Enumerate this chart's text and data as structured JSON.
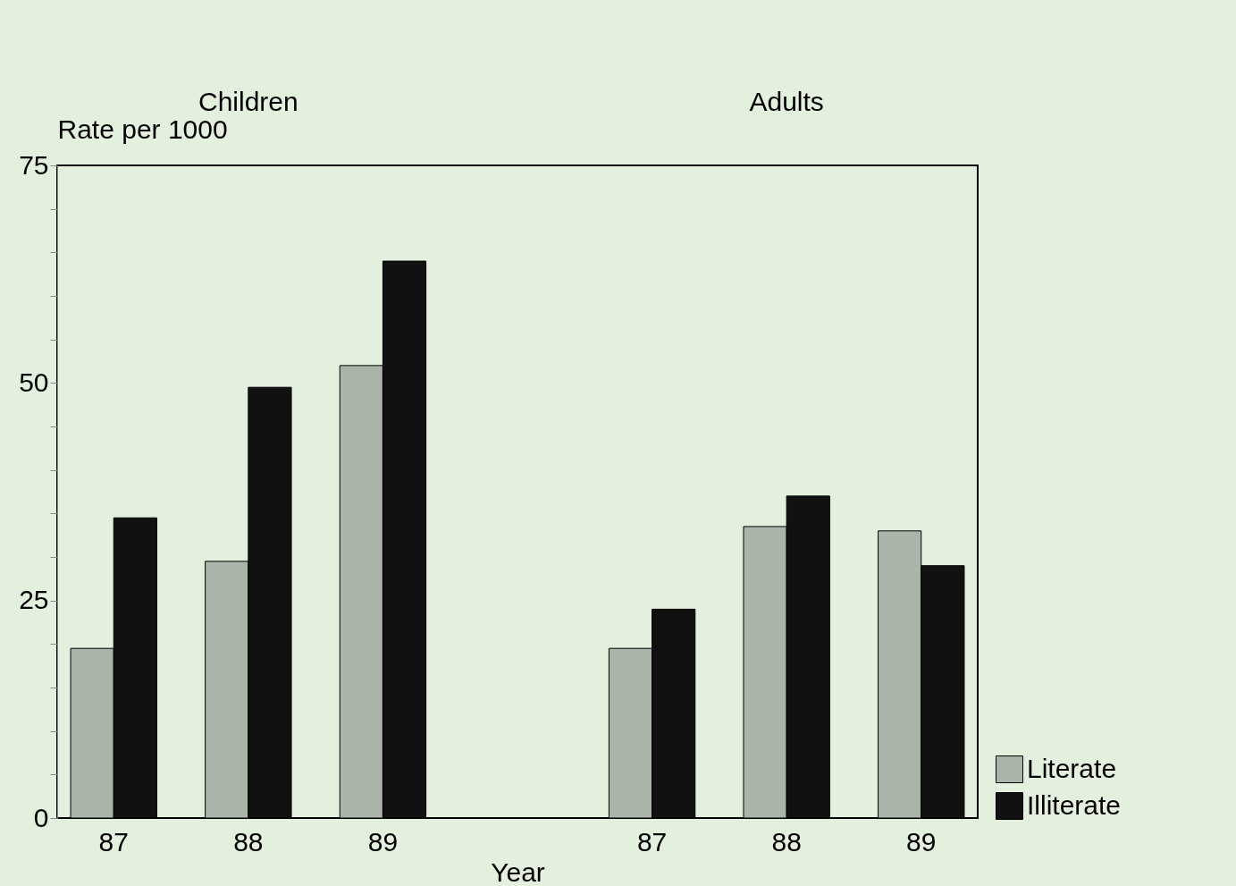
{
  "chart_data": {
    "type": "bar",
    "categories": [
      "87",
      "88",
      "89",
      null,
      "87",
      "88",
      "89"
    ],
    "series": [
      {
        "name": "Literate",
        "color": "#aab4a8",
        "values": [
          19.5,
          29.5,
          52,
          null,
          19.5,
          33.5,
          33
        ]
      },
      {
        "name": "Illiterate",
        "color": "#111111",
        "values": [
          34.5,
          49.5,
          64,
          null,
          24,
          37,
          29
        ]
      }
    ],
    "annotations": [
      "Children",
      "Adults"
    ],
    "xlabel": "Year",
    "ylabel": "Rate per 1000",
    "ylim": [
      0,
      75
    ],
    "yticks": [
      0,
      {
        "value": 5,
        "label": null
      },
      {
        "value": 10,
        "label": null
      },
      {
        "value": 15,
        "label": null
      },
      {
        "value": 20,
        "label": null
      },
      25,
      {
        "value": 30,
        "label": null
      },
      {
        "value": 35,
        "label": null
      },
      {
        "value": 40,
        "label": null
      },
      {
        "value": 45,
        "label": null
      },
      50,
      {
        "value": 55,
        "label": null
      },
      {
        "value": 60,
        "label": null
      },
      {
        "value": 65,
        "label": null
      },
      {
        "value": 70,
        "label": null
      },
      75
    ],
    "grid": false,
    "legend": "bottom right"
  }
}
